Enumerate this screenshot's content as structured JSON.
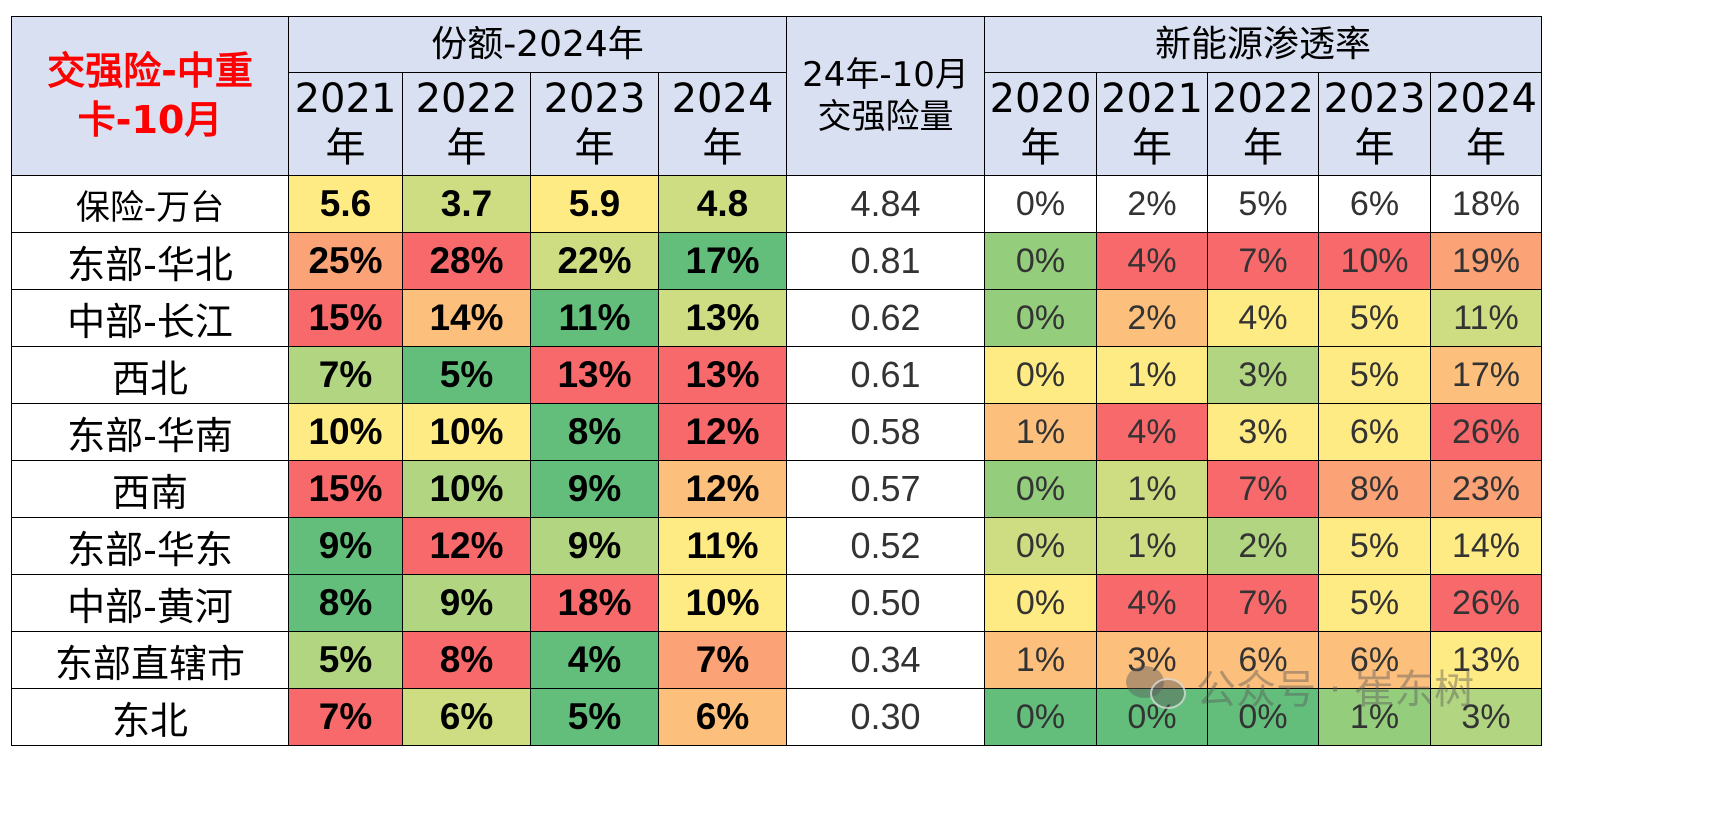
{
  "table": {
    "corner_title": "交强险-中重卡-10月",
    "groups": {
      "share": "份额-2024年",
      "volume": "24年-10月交强险量",
      "penetration": "新能源渗透率"
    },
    "share_years": [
      "2021年",
      "2022年",
      "2023年",
      "2024年"
    ],
    "pen_years": [
      "2020年",
      "2021年",
      "2022年",
      "2023年",
      "2024年"
    ],
    "colors": {
      "dark_green": "#63be7b",
      "green": "#94ce7d",
      "light_green": "#b1d580",
      "yellow_green": "#cedd82",
      "yellow": "#ffeb84",
      "light_orange": "#fdc07c",
      "orange": "#fba276",
      "red": "#f8696b",
      "white": "#ffffff",
      "header_bg": "#d9e0f1",
      "title_red": "#ff0000"
    },
    "rows": [
      {
        "label": "保险-万台",
        "shares": [
          "5.6",
          "3.7",
          "5.9",
          "4.8"
        ],
        "volume": "4.84",
        "pen": [
          "0%",
          "2%",
          "5%",
          "6%",
          "18%"
        ]
      },
      {
        "label": "东部-华北",
        "shares": [
          "25%",
          "28%",
          "22%",
          "17%"
        ],
        "volume": "0.81",
        "pen": [
          "0%",
          "4%",
          "7%",
          "10%",
          "19%"
        ]
      },
      {
        "label": "中部-长江",
        "shares": [
          "15%",
          "14%",
          "11%",
          "13%"
        ],
        "volume": "0.62",
        "pen": [
          "0%",
          "2%",
          "4%",
          "5%",
          "11%"
        ]
      },
      {
        "label": "西北",
        "shares": [
          "7%",
          "5%",
          "13%",
          "13%"
        ],
        "volume": "0.61",
        "pen": [
          "0%",
          "1%",
          "3%",
          "5%",
          "17%"
        ]
      },
      {
        "label": "东部-华南",
        "shares": [
          "10%",
          "10%",
          "8%",
          "12%"
        ],
        "volume": "0.58",
        "pen": [
          "1%",
          "4%",
          "3%",
          "6%",
          "26%"
        ]
      },
      {
        "label": "西南",
        "shares": [
          "15%",
          "10%",
          "9%",
          "12%"
        ],
        "volume": "0.57",
        "pen": [
          "0%",
          "1%",
          "7%",
          "8%",
          "23%"
        ]
      },
      {
        "label": "东部-华东",
        "shares": [
          "9%",
          "12%",
          "9%",
          "11%"
        ],
        "volume": "0.52",
        "pen": [
          "0%",
          "1%",
          "2%",
          "5%",
          "14%"
        ]
      },
      {
        "label": "中部-黄河",
        "shares": [
          "8%",
          "9%",
          "18%",
          "10%"
        ],
        "volume": "0.50",
        "pen": [
          "0%",
          "4%",
          "7%",
          "5%",
          "26%"
        ]
      },
      {
        "label": "东部直辖市",
        "shares": [
          "5%",
          "8%",
          "4%",
          "7%"
        ],
        "volume": "0.34",
        "pen": [
          "1%",
          "3%",
          "6%",
          "6%",
          "13%"
        ]
      },
      {
        "label": "东北",
        "shares": [
          "7%",
          "6%",
          "5%",
          "6%"
        ],
        "volume": "0.30",
        "pen": [
          "0%",
          "0%",
          "0%",
          "1%",
          "3%"
        ]
      }
    ],
    "share_cell_colors": [
      [
        "yellow",
        "yellow_green",
        "yellow",
        "yellow_green"
      ],
      [
        "orange",
        "red",
        "yellow_green",
        "dark_green"
      ],
      [
        "red",
        "light_orange",
        "dark_green",
        "yellow_green"
      ],
      [
        "light_green",
        "dark_green",
        "red",
        "red"
      ],
      [
        "yellow",
        "yellow",
        "dark_green",
        "red"
      ],
      [
        "red",
        "light_green",
        "dark_green",
        "light_orange"
      ],
      [
        "dark_green",
        "red",
        "light_green",
        "yellow"
      ],
      [
        "dark_green",
        "light_green",
        "red",
        "yellow"
      ],
      [
        "light_green",
        "red",
        "dark_green",
        "orange"
      ],
      [
        "red",
        "yellow_green",
        "dark_green",
        "light_orange"
      ]
    ],
    "pen_cell_colors": [
      [
        "white",
        "white",
        "white",
        "white",
        "white"
      ],
      [
        "green",
        "red",
        "red",
        "red",
        "orange"
      ],
      [
        "green",
        "light_orange",
        "yellow",
        "yellow",
        "yellow_green"
      ],
      [
        "yellow",
        "yellow",
        "light_green",
        "yellow",
        "light_orange"
      ],
      [
        "light_orange",
        "red",
        "yellow",
        "yellow",
        "red"
      ],
      [
        "green",
        "yellow_green",
        "red",
        "orange",
        "orange"
      ],
      [
        "yellow_green",
        "yellow_green",
        "light_green",
        "yellow",
        "yellow"
      ],
      [
        "yellow",
        "red",
        "red",
        "yellow",
        "red"
      ],
      [
        "light_orange",
        "light_orange",
        "light_orange",
        "light_orange",
        "yellow"
      ],
      [
        "dark_green",
        "dark_green",
        "dark_green",
        "green",
        "light_green"
      ]
    ]
  },
  "chart_data": {
    "type": "table",
    "title": "交强险-中重卡-10月",
    "columns": [
      "份额-2024年 2021年",
      "份额-2024年 2022年",
      "份额-2024年 2023年",
      "份额-2024年 2024年",
      "24年-10月交强险量",
      "新能源渗透率 2020年",
      "新能源渗透率 2021年",
      "新能源渗透率 2022年",
      "新能源渗透率 2023年",
      "新能源渗透率 2024年"
    ],
    "rows": [
      {
        "region": "保险-万台",
        "share": [
          5.6,
          3.7,
          5.9,
          4.8
        ],
        "volume": 4.84,
        "penetration_pct": [
          0,
          2,
          5,
          6,
          18
        ]
      },
      {
        "region": "东部-华北",
        "share_pct": [
          25,
          28,
          22,
          17
        ],
        "volume": 0.81,
        "penetration_pct": [
          0,
          4,
          7,
          10,
          19
        ]
      },
      {
        "region": "中部-长江",
        "share_pct": [
          15,
          14,
          11,
          13
        ],
        "volume": 0.62,
        "penetration_pct": [
          0,
          2,
          4,
          5,
          11
        ]
      },
      {
        "region": "西北",
        "share_pct": [
          7,
          5,
          13,
          13
        ],
        "volume": 0.61,
        "penetration_pct": [
          0,
          1,
          3,
          5,
          17
        ]
      },
      {
        "region": "东部-华南",
        "share_pct": [
          10,
          10,
          8,
          12
        ],
        "volume": 0.58,
        "penetration_pct": [
          1,
          4,
          3,
          6,
          26
        ]
      },
      {
        "region": "西南",
        "share_pct": [
          15,
          10,
          9,
          12
        ],
        "volume": 0.57,
        "penetration_pct": [
          0,
          1,
          7,
          8,
          23
        ]
      },
      {
        "region": "东部-华东",
        "share_pct": [
          9,
          12,
          9,
          11
        ],
        "volume": 0.52,
        "penetration_pct": [
          0,
          1,
          2,
          5,
          14
        ]
      },
      {
        "region": "中部-黄河",
        "share_pct": [
          8,
          9,
          18,
          10
        ],
        "volume": 0.5,
        "penetration_pct": [
          0,
          4,
          7,
          5,
          26
        ]
      },
      {
        "region": "东部直辖市",
        "share_pct": [
          5,
          8,
          4,
          7
        ],
        "volume": 0.34,
        "penetration_pct": [
          1,
          3,
          6,
          6,
          13
        ]
      },
      {
        "region": "东北",
        "share_pct": [
          7,
          6,
          5,
          6
        ],
        "volume": 0.3,
        "penetration_pct": [
          0,
          0,
          0,
          1,
          3
        ]
      }
    ]
  },
  "watermark": {
    "icon": "wechat-icon",
    "text": "公众号 · 崔东树"
  }
}
